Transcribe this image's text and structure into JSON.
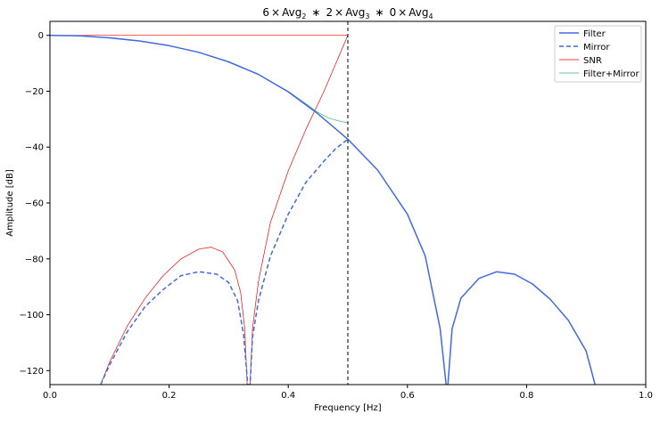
{
  "chart_data": {
    "type": "line",
    "title_parts": {
      "n2": "6",
      "t1": "×",
      "avg": "Avg",
      "s2": "2",
      "star": "∗",
      "n3": "2",
      "s3": "3",
      "n4": "0",
      "s4": "4"
    },
    "xlabel": "Frequency [Hz]",
    "ylabel": "Amplitude [dB]",
    "xlim": [
      0.0,
      1.0
    ],
    "ylim": [
      -125,
      5
    ],
    "xticks": [
      0.0,
      0.2,
      0.4,
      0.6,
      0.8,
      1.0
    ],
    "xtick_labels": [
      "0.0",
      "0.2",
      "0.4",
      "0.6",
      "0.8",
      "1.0"
    ],
    "yticks": [
      0,
      -20,
      -40,
      -60,
      -80,
      -100,
      -120
    ],
    "ytick_labels": [
      "0",
      "−20",
      "−40",
      "−60",
      "−80",
      "−100",
      "−120"
    ],
    "grid": false,
    "legend_position": "top-right",
    "vline_x": 0.5,
    "series": [
      {
        "name": "Filter",
        "color": "#4169e1",
        "style": "solid",
        "points": [
          [
            0.0,
            0
          ],
          [
            0.05,
            -0.2
          ],
          [
            0.1,
            -0.9
          ],
          [
            0.15,
            -2.0
          ],
          [
            0.2,
            -3.7
          ],
          [
            0.25,
            -6.1
          ],
          [
            0.3,
            -9.5
          ],
          [
            0.35,
            -14.0
          ],
          [
            0.4,
            -20.2
          ],
          [
            0.45,
            -28.1
          ],
          [
            0.5,
            -37.2
          ],
          [
            0.55,
            -48.2
          ],
          [
            0.6,
            -64.0
          ],
          [
            0.63,
            -79.0
          ],
          [
            0.655,
            -105.0
          ],
          [
            0.665,
            -125.0
          ],
          [
            0.668,
            -125.0
          ],
          [
            0.675,
            -105.0
          ],
          [
            0.69,
            -94.0
          ],
          [
            0.72,
            -87.0
          ],
          [
            0.75,
            -84.6
          ],
          [
            0.78,
            -85.5
          ],
          [
            0.81,
            -89.0
          ],
          [
            0.84,
            -94.5
          ],
          [
            0.87,
            -102.0
          ],
          [
            0.9,
            -113.0
          ],
          [
            0.915,
            -125.0
          ]
        ]
      },
      {
        "name": "Mirror",
        "color": "#4169e1",
        "style": "dashed",
        "points": [
          [
            0.085,
            -125.0
          ],
          [
            0.1,
            -118.0
          ],
          [
            0.13,
            -106.0
          ],
          [
            0.16,
            -97.0
          ],
          [
            0.19,
            -91.0
          ],
          [
            0.22,
            -86.0
          ],
          [
            0.25,
            -84.6
          ],
          [
            0.28,
            -85.5
          ],
          [
            0.3,
            -88.5
          ],
          [
            0.315,
            -95.0
          ],
          [
            0.325,
            -107.0
          ],
          [
            0.332,
            -125.0
          ],
          [
            0.336,
            -125.0
          ],
          [
            0.34,
            -108.0
          ],
          [
            0.35,
            -95.0
          ],
          [
            0.37,
            -79.0
          ],
          [
            0.4,
            -64.0
          ],
          [
            0.43,
            -52.5
          ],
          [
            0.46,
            -45.0
          ],
          [
            0.48,
            -40.5
          ],
          [
            0.5,
            -37.2
          ]
        ]
      },
      {
        "name": "SNR",
        "color": "#ff0000",
        "style": "thin",
        "points": [
          [
            0.0,
            0
          ],
          [
            0.5,
            0
          ]
        ],
        "extra_points": [
          [
            0.085,
            -125.0
          ],
          [
            0.1,
            -117.0
          ],
          [
            0.13,
            -104.0
          ],
          [
            0.16,
            -94.0
          ],
          [
            0.19,
            -86.0
          ],
          [
            0.22,
            -80.0
          ],
          [
            0.25,
            -76.5
          ],
          [
            0.27,
            -75.8
          ],
          [
            0.29,
            -77.5
          ],
          [
            0.31,
            -84.0
          ],
          [
            0.32,
            -92.0
          ],
          [
            0.327,
            -105.0
          ],
          [
            0.331,
            -125.0
          ],
          [
            0.336,
            -125.0
          ],
          [
            0.34,
            -105.0
          ],
          [
            0.35,
            -88.0
          ],
          [
            0.37,
            -67.0
          ],
          [
            0.4,
            -48.5
          ],
          [
            0.43,
            -33.5
          ],
          [
            0.46,
            -20.0
          ],
          [
            0.48,
            -10.0
          ],
          [
            0.5,
            0
          ]
        ]
      },
      {
        "name": "Filter+Mirror",
        "color": "#3cb371",
        "style": "thin",
        "points": [
          [
            0.0,
            0
          ],
          [
            0.05,
            -0.2
          ],
          [
            0.1,
            -0.9
          ],
          [
            0.15,
            -2.0
          ],
          [
            0.2,
            -3.7
          ],
          [
            0.25,
            -6.1
          ],
          [
            0.3,
            -9.5
          ],
          [
            0.35,
            -14.0
          ],
          [
            0.4,
            -20.0
          ],
          [
            0.43,
            -24.5
          ],
          [
            0.45,
            -27.6
          ],
          [
            0.47,
            -29.8
          ],
          [
            0.49,
            -30.9
          ],
          [
            0.5,
            -31.2
          ]
        ]
      }
    ]
  }
}
